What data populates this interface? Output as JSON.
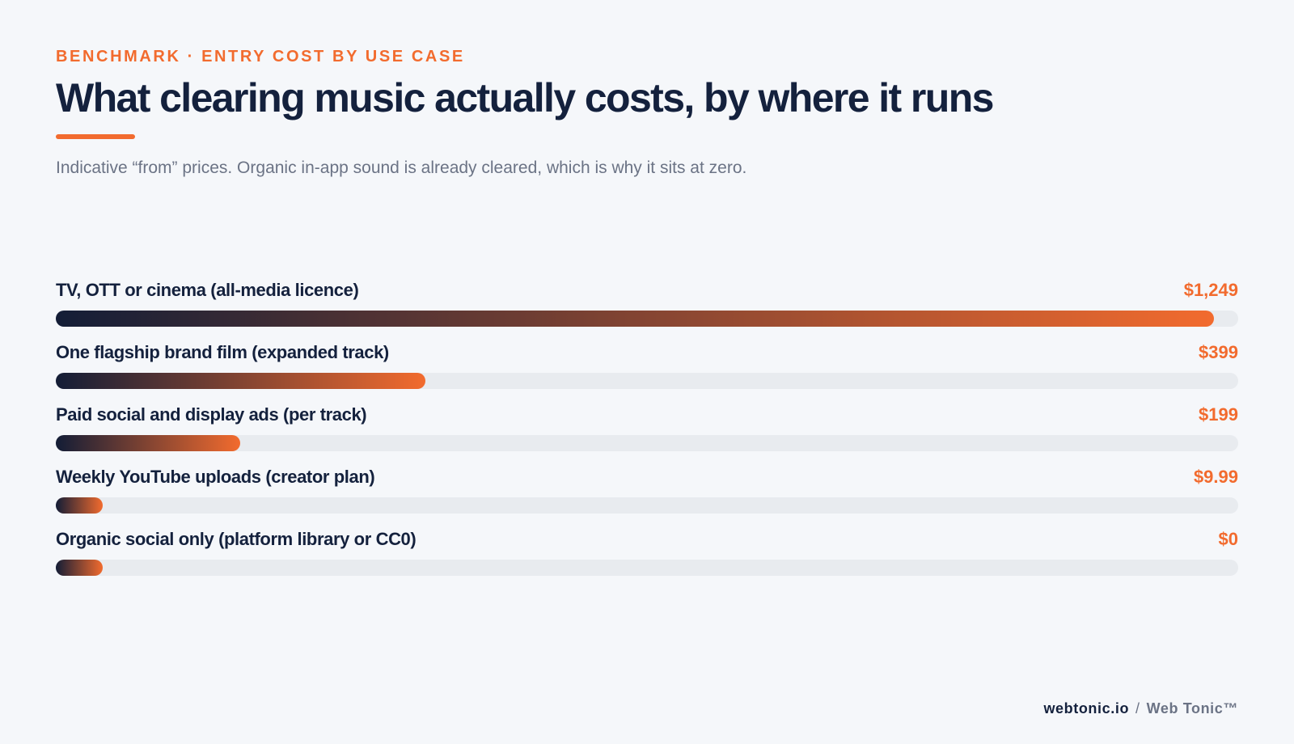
{
  "header": {
    "eyebrow": "BENCHMARK · ENTRY COST BY USE CASE",
    "title": "What clearing music actually costs, by where it runs",
    "subtitle": "Indicative “from” prices. Organic in-app sound is already cleared, which is why it sits at zero."
  },
  "chart_data": {
    "type": "bar",
    "orientation": "horizontal",
    "categories": [
      "TV, OTT or cinema (all-media licence)",
      "One flagship brand film (expanded track)",
      "Paid social and display ads (per track)",
      "Weekly YouTube uploads (creator plan)",
      "Organic social only (platform library or CC0)"
    ],
    "values": [
      1249,
      399,
      199,
      9.99,
      0
    ],
    "value_labels": [
      "$1,249",
      "$399",
      "$199",
      "$9.99",
      "$0"
    ],
    "xlim": [
      0,
      1249
    ],
    "grid": false,
    "colors": {
      "gradient_start": "#131d36",
      "gradient_end": "#f26b2e",
      "track": "#e8ebef",
      "value_text": "#f26b2e"
    }
  },
  "footer": {
    "domain": "webtonic.io",
    "separator": "/",
    "brand": "Web Tonic™"
  },
  "colors": {
    "background": "#f5f7fa",
    "accent": "#f26b2e",
    "ink": "#14213d",
    "muted": "#6b7385"
  }
}
